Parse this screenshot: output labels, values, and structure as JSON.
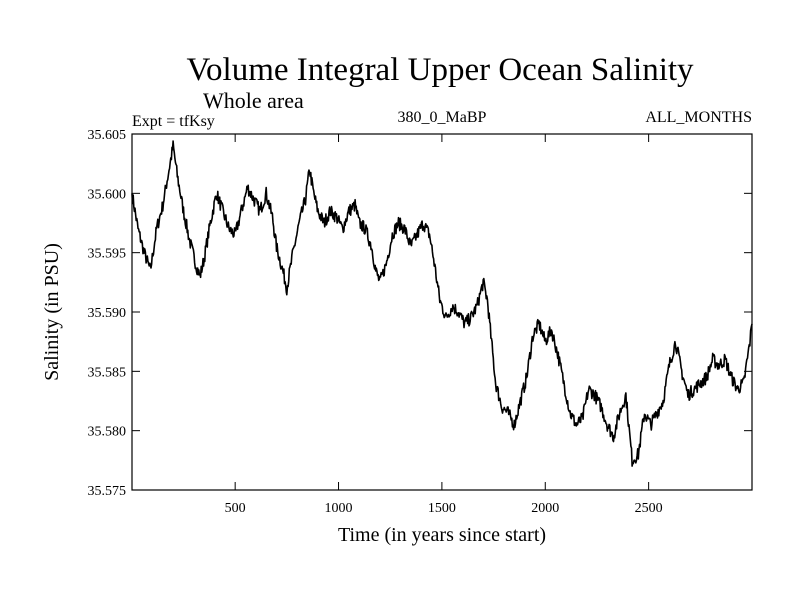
{
  "chart_data": {
    "type": "line",
    "title": "Volume Integral Upper Ocean Salinity",
    "subtitle": "Whole area",
    "experiment": "Expt = tfKsy",
    "run_label": "380_0_MaBP",
    "months_label": "ALL_MONTHS",
    "xlabel": "Time (in years since start)",
    "ylabel": "Salinity (in PSU)",
    "xlim": [
      1,
      3000
    ],
    "ylim": [
      35.575,
      35.605
    ],
    "xticks": [
      500,
      1000,
      1500,
      2000,
      2500
    ],
    "xtick_labels": [
      "500",
      "1000",
      "1500",
      "2000",
      "2500"
    ],
    "yticks": [
      35.575,
      35.58,
      35.585,
      35.59,
      35.595,
      35.6,
      35.605
    ],
    "ytick_labels": [
      "35.575",
      "35.580",
      "35.585",
      "35.590",
      "35.595",
      "35.600",
      "35.605"
    ],
    "grid": false,
    "series": [
      {
        "name": "Salinity",
        "x": [
          1,
          30,
          60,
          90,
          120,
          150,
          180,
          200,
          220,
          250,
          280,
          310,
          330,
          350,
          380,
          410,
          440,
          470,
          500,
          530,
          560,
          590,
          620,
          650,
          680,
          700,
          730,
          750,
          780,
          810,
          840,
          860,
          880,
          900,
          930,
          960,
          990,
          1020,
          1050,
          1080,
          1100,
          1130,
          1160,
          1180,
          1200,
          1230,
          1260,
          1290,
          1320,
          1350,
          1380,
          1410,
          1440,
          1460,
          1490,
          1520,
          1550,
          1580,
          1610,
          1640,
          1670,
          1700,
          1720,
          1740,
          1760,
          1790,
          1820,
          1850,
          1880,
          1910,
          1940,
          1970,
          2000,
          2030,
          2060,
          2090,
          2120,
          2150,
          2180,
          2210,
          2240,
          2270,
          2300,
          2330,
          2360,
          2390,
          2420,
          2450,
          2480,
          2510,
          2540,
          2570,
          2600,
          2630,
          2660,
          2690,
          2720,
          2750,
          2780,
          2810,
          2840,
          2870,
          2900,
          2930,
          2960,
          2990,
          3000
        ],
        "values": [
          35.6,
          35.597,
          35.595,
          35.5935,
          35.597,
          35.599,
          35.602,
          35.604,
          35.6015,
          35.5985,
          35.596,
          35.594,
          35.593,
          35.5945,
          35.5975,
          35.6,
          35.5985,
          35.597,
          35.5965,
          35.5985,
          35.6005,
          35.5995,
          35.5985,
          35.6,
          35.598,
          35.5955,
          35.5935,
          35.592,
          35.595,
          35.5975,
          35.5995,
          35.602,
          35.6,
          35.5985,
          35.5975,
          35.5985,
          35.598,
          35.597,
          35.5985,
          35.599,
          35.5975,
          35.597,
          35.5955,
          35.5935,
          35.5925,
          35.594,
          35.5965,
          35.5975,
          35.597,
          35.5955,
          35.5965,
          35.5975,
          35.5965,
          35.5945,
          35.591,
          35.5895,
          35.5905,
          35.59,
          35.589,
          35.5895,
          35.5905,
          35.5925,
          35.591,
          35.5875,
          35.584,
          35.582,
          35.5815,
          35.5805,
          35.5825,
          35.5845,
          35.588,
          35.589,
          35.5875,
          35.5885,
          35.5865,
          35.584,
          35.5815,
          35.5805,
          35.581,
          35.5835,
          35.583,
          35.582,
          35.5805,
          35.5795,
          35.5815,
          35.583,
          35.5775,
          35.578,
          35.5815,
          35.5805,
          35.5815,
          35.5825,
          35.5855,
          35.5875,
          35.585,
          35.583,
          35.5835,
          35.584,
          35.5845,
          35.586,
          35.5855,
          35.586,
          35.5845,
          35.5835,
          35.584,
          35.5875,
          35.589
        ]
      }
    ]
  }
}
